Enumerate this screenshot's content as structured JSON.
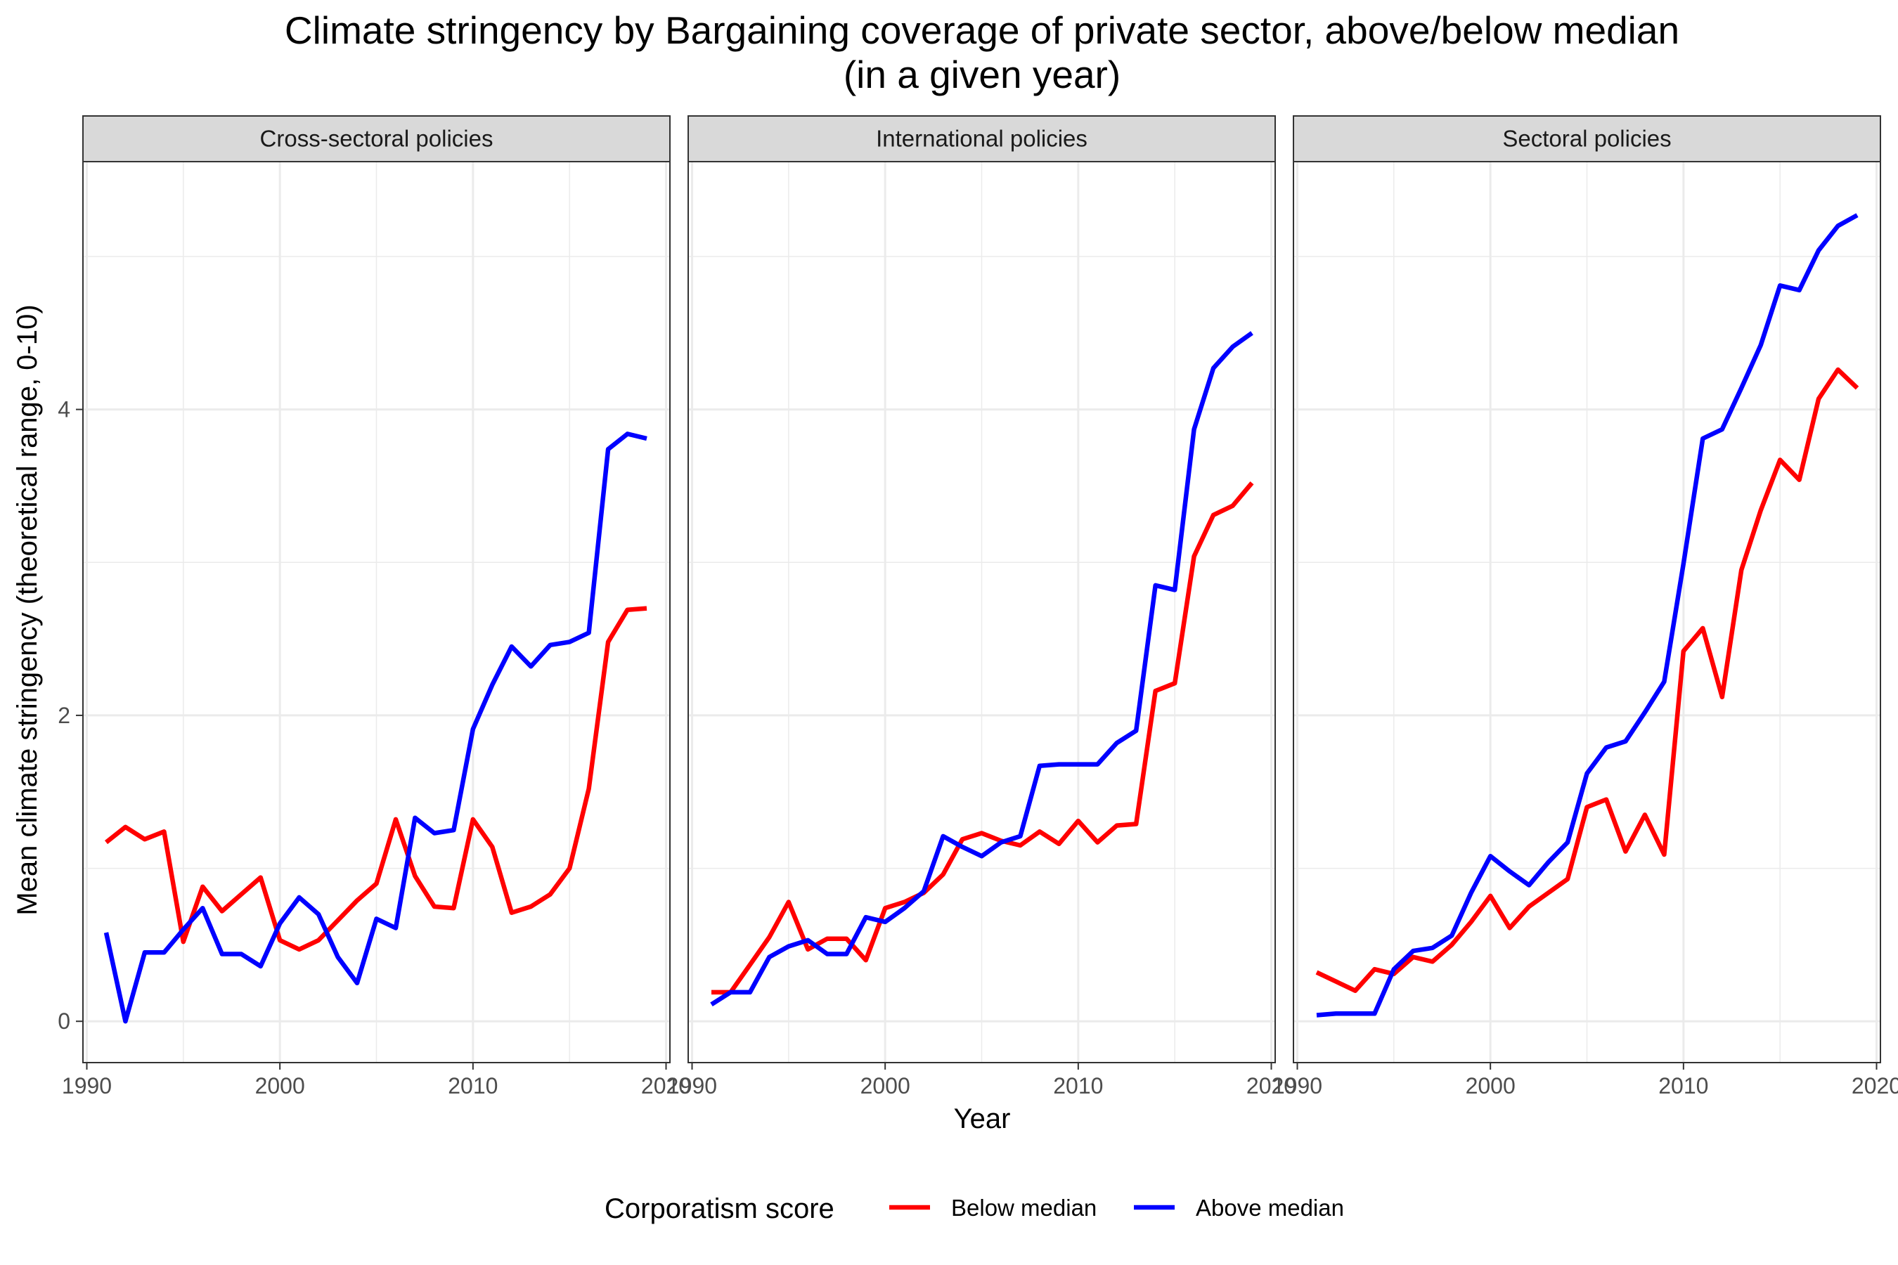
{
  "chart_data": {
    "type": "line",
    "title": "Climate stringency by Bargaining coverage of private sector, above/below median",
    "subtitle": "(in a given year)",
    "xlabel": "Year",
    "ylabel": "Mean climate stringency (theoretical range, 0-10)",
    "xlim": [
      1989.8,
      2020.2
    ],
    "ylim": [
      -0.27,
      5.62
    ],
    "x_ticks": [
      1990,
      2000,
      2010,
      2020
    ],
    "x_tick_labels": [
      "1990",
      "2000",
      "2010",
      "2020"
    ],
    "y_ticks": [
      0,
      2,
      4
    ],
    "y_tick_labels": [
      "0",
      "2",
      "4"
    ],
    "grid": true,
    "legend": {
      "title": "Corporatism score",
      "position": "bottom",
      "entries": [
        {
          "label": "Below median",
          "color": "#ff0000"
        },
        {
          "label": "Above median",
          "color": "#0000ff"
        }
      ]
    },
    "panels": [
      {
        "name": "Cross-sectoral policies",
        "series": [
          {
            "name": "Below median",
            "color": "#ff0000",
            "x": [
              1991,
              1992,
              1993,
              1994,
              1995,
              1996,
              1997,
              1998,
              1999,
              2000,
              2001,
              2002,
              2003,
              2004,
              2005,
              2006,
              2007,
              2008,
              2009,
              2010,
              2011,
              2012,
              2013,
              2014,
              2015,
              2016,
              2017,
              2018,
              2019
            ],
            "values": [
              1.17,
              1.27,
              1.19,
              1.24,
              0.52,
              0.88,
              0.72,
              0.83,
              0.94,
              0.53,
              0.47,
              0.53,
              0.66,
              0.79,
              0.9,
              1.32,
              0.95,
              0.75,
              0.74,
              1.32,
              1.14,
              0.71,
              0.75,
              0.83,
              1.0,
              1.52,
              2.48,
              2.69,
              2.7
            ]
          },
          {
            "name": "Above median",
            "color": "#0000ff",
            "x": [
              1991,
              1992,
              1993,
              1994,
              1995,
              1996,
              1997,
              1998,
              1999,
              2000,
              2001,
              2002,
              2003,
              2004,
              2005,
              2006,
              2007,
              2008,
              2009,
              2010,
              2011,
              2012,
              2013,
              2014,
              2015,
              2016,
              2017,
              2018,
              2019
            ],
            "values": [
              0.58,
              0.0,
              0.45,
              0.45,
              0.6,
              0.74,
              0.44,
              0.44,
              0.36,
              0.64,
              0.81,
              0.7,
              0.42,
              0.25,
              0.67,
              0.61,
              1.33,
              1.23,
              1.25,
              1.91,
              2.2,
              2.45,
              2.32,
              2.46,
              2.48,
              2.54,
              3.74,
              3.84,
              3.81
            ]
          }
        ]
      },
      {
        "name": "International policies",
        "series": [
          {
            "name": "Below median",
            "color": "#ff0000",
            "x": [
              1991,
              1992,
              1993,
              1994,
              1995,
              1996,
              1997,
              1998,
              1999,
              2000,
              2001,
              2002,
              2003,
              2004,
              2005,
              2006,
              2007,
              2008,
              2009,
              2010,
              2011,
              2012,
              2013,
              2014,
              2015,
              2016,
              2017,
              2018,
              2019
            ],
            "values": [
              0.19,
              0.19,
              0.37,
              0.55,
              0.78,
              0.47,
              0.54,
              0.54,
              0.4,
              0.74,
              0.78,
              0.84,
              0.96,
              1.19,
              1.23,
              1.18,
              1.15,
              1.24,
              1.16,
              1.31,
              1.17,
              1.28,
              1.29,
              2.16,
              2.21,
              3.04,
              3.31,
              3.37,
              3.52
            ]
          },
          {
            "name": "Above median",
            "color": "#0000ff",
            "x": [
              1991,
              1992,
              1993,
              1994,
              1995,
              1996,
              1997,
              1998,
              1999,
              2000,
              2001,
              2002,
              2003,
              2004,
              2005,
              2006,
              2007,
              2008,
              2009,
              2010,
              2011,
              2012,
              2013,
              2014,
              2015,
              2016,
              2017,
              2018,
              2019
            ],
            "values": [
              0.11,
              0.19,
              0.19,
              0.42,
              0.49,
              0.53,
              0.44,
              0.44,
              0.68,
              0.65,
              0.74,
              0.85,
              1.21,
              1.14,
              1.08,
              1.17,
              1.21,
              1.67,
              1.68,
              1.68,
              1.68,
              1.82,
              1.9,
              2.85,
              2.82,
              3.87,
              4.27,
              4.41,
              4.5
            ]
          }
        ]
      },
      {
        "name": "Sectoral policies",
        "series": [
          {
            "name": "Below median",
            "color": "#ff0000",
            "x": [
              1991,
              1992,
              1993,
              1994,
              1995,
              1996,
              1997,
              1998,
              1999,
              2000,
              2001,
              2002,
              2003,
              2004,
              2005,
              2006,
              2007,
              2008,
              2009,
              2010,
              2011,
              2012,
              2013,
              2014,
              2015,
              2016,
              2017,
              2018,
              2019
            ],
            "values": [
              0.32,
              0.26,
              0.2,
              0.34,
              0.31,
              0.42,
              0.39,
              0.5,
              0.65,
              0.82,
              0.61,
              0.75,
              0.84,
              0.93,
              1.4,
              1.45,
              1.11,
              1.35,
              1.09,
              2.42,
              2.57,
              2.12,
              2.95,
              3.34,
              3.67,
              3.54,
              4.07,
              4.26,
              4.14
            ]
          },
          {
            "name": "Above median",
            "color": "#0000ff",
            "x": [
              1991,
              1992,
              1993,
              1994,
              1995,
              1996,
              1997,
              1998,
              1999,
              2000,
              2001,
              2002,
              2003,
              2004,
              2005,
              2006,
              2007,
              2008,
              2009,
              2010,
              2011,
              2012,
              2013,
              2014,
              2015,
              2016,
              2017,
              2018,
              2019
            ],
            "values": [
              0.04,
              0.05,
              0.05,
              0.05,
              0.34,
              0.46,
              0.48,
              0.56,
              0.84,
              1.08,
              0.98,
              0.89,
              1.04,
              1.17,
              1.62,
              1.79,
              1.83,
              2.02,
              2.22,
              2.99,
              3.81,
              3.87,
              4.14,
              4.42,
              4.81,
              4.78,
              5.04,
              5.2,
              5.27
            ]
          }
        ]
      }
    ]
  }
}
